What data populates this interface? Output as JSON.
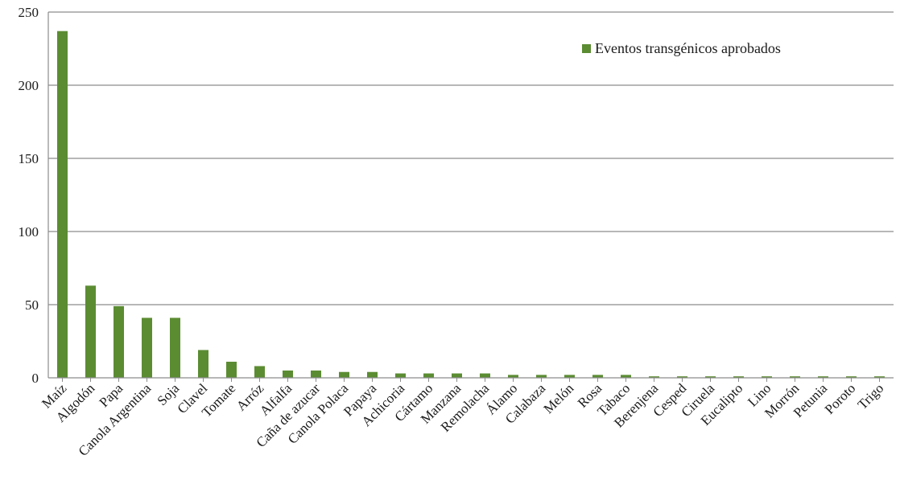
{
  "chart_data": {
    "type": "bar",
    "categories": [
      "Maíz",
      "Algodón",
      "Papa",
      "Canola Argentina",
      "Soja",
      "Clavel",
      "Tomate",
      "Arróz",
      "Alfalfa",
      "Caña de azucar",
      "Canola Polaca",
      "Papaya",
      "Achicoria",
      "Cártamo",
      "Manzana",
      "Remolacha",
      "Álamo",
      "Calabaza",
      "Melón",
      "Rosa",
      "Tabaco",
      "Berenjena",
      "Cesped",
      "Ciruela",
      "Eucalipto",
      "Lino",
      "Morrón",
      "Petunia",
      "Poroto",
      "Trigo"
    ],
    "series": [
      {
        "name": "Eventos transgénicos aprobados",
        "values": [
          237,
          63,
          49,
          41,
          41,
          19,
          11,
          8,
          5,
          5,
          4,
          4,
          3,
          3,
          3,
          3,
          2,
          2,
          2,
          2,
          2,
          1,
          1,
          1,
          1,
          1,
          1,
          1,
          1,
          1
        ]
      }
    ],
    "yticks": [
      "0",
      "50",
      "100",
      "150",
      "200",
      "250"
    ],
    "ylim": [
      0,
      250
    ],
    "grid": true,
    "legend_position": "top-right",
    "colors": {
      "bar": "#5B8C32",
      "grid": "#8c8c8c",
      "axis": "#8c8c8c"
    }
  }
}
